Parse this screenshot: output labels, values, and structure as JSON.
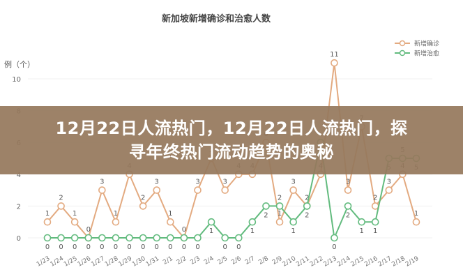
{
  "banner": {
    "line1": "12月22日人流热门，12月22日人流热门，探",
    "line2": "寻年终热门流动趋势的奥秘"
  },
  "chart_data": {
    "type": "line",
    "title": "新加坡新增确诊和治愈人数",
    "ylabel": "例（个）",
    "xlabel": "",
    "ylim": [
      0,
      10
    ],
    "yticks": [
      0,
      2,
      4,
      6,
      8,
      10
    ],
    "grid": true,
    "legend_position": "top-right",
    "categories": [
      "1/23",
      "1/24",
      "1/25",
      "1/26",
      "1/27",
      "1/28",
      "1/29",
      "1/30",
      "1/31",
      "2/1",
      "2/2",
      "2/3",
      "2/4",
      "2/5",
      "2/6",
      "2/7",
      "2/8",
      "2/9",
      "2/10",
      "2/11",
      "2/12",
      "2/13",
      "2/14",
      "2/15",
      "2/16",
      "2/17",
      "2/18",
      "2/19"
    ],
    "series": [
      {
        "name": "新增确诊",
        "color": "#e3aa80",
        "values": [
          1,
          2,
          1,
          0,
          3,
          1,
          4,
          2,
          3,
          1,
          0,
          3,
          5,
          3,
          4,
          4,
          6,
          1,
          3,
          2,
          4,
          11,
          3,
          7,
          2,
          3,
          4,
          1
        ]
      },
      {
        "name": "新增治愈",
        "color": "#62bb7e",
        "values": [
          0,
          0,
          0,
          0,
          0,
          0,
          0,
          0,
          0,
          0,
          0,
          0,
          1,
          0,
          0,
          1,
          2,
          2,
          1,
          2,
          6,
          0,
          2,
          1,
          1,
          5,
          5,
          5
        ]
      }
    ]
  }
}
